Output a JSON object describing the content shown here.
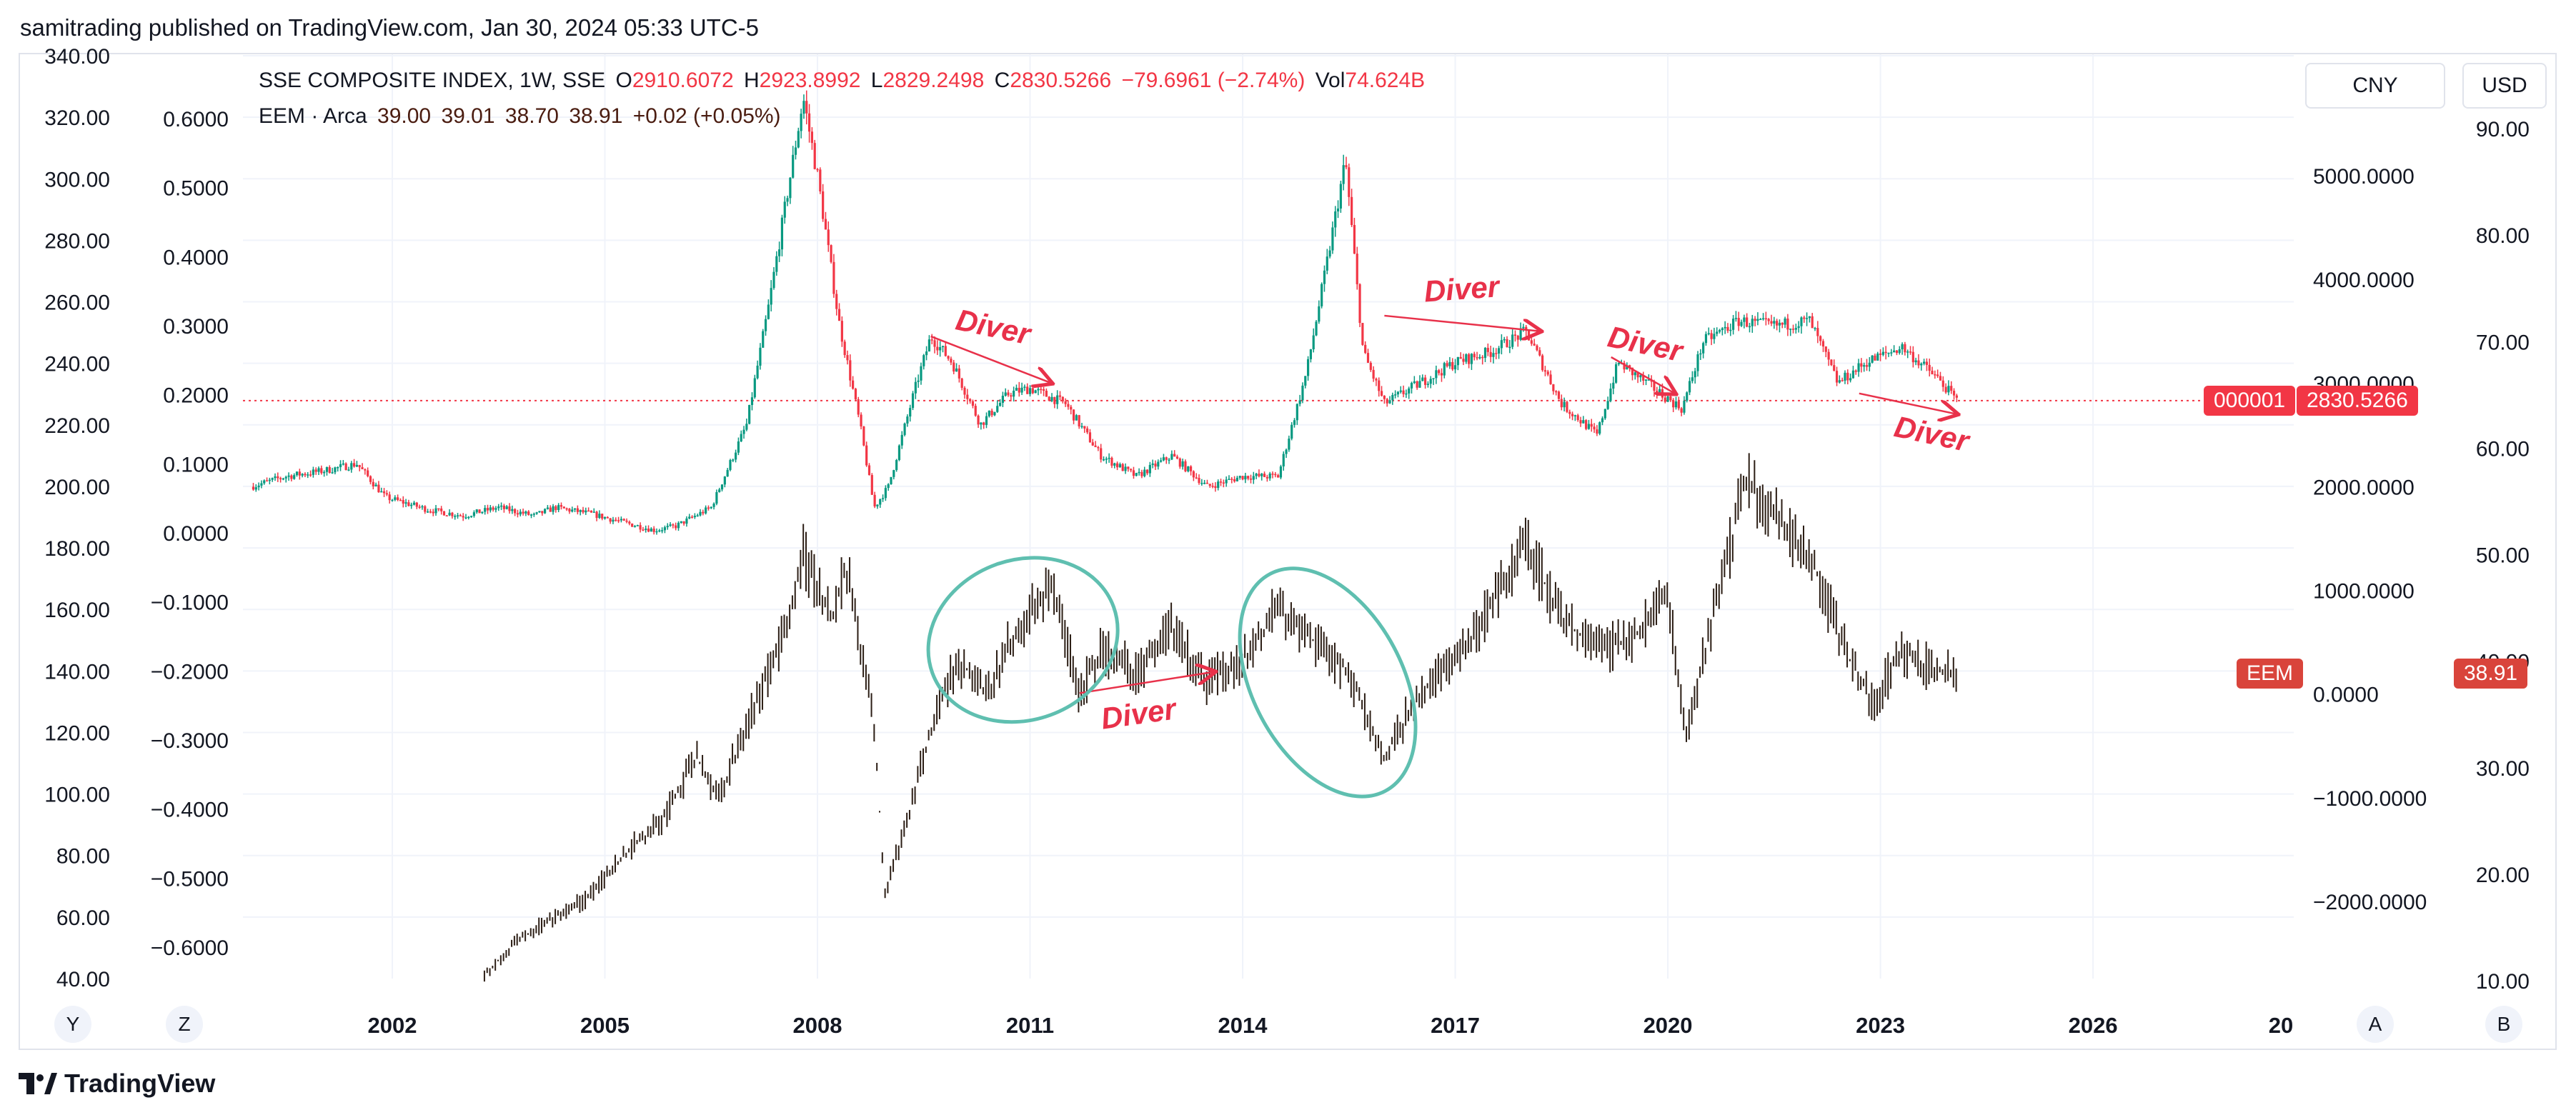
{
  "header": {
    "publisher_caption": "samitrading published on TradingView.com, Jan 30, 2024 05:33 UTC-5"
  },
  "legend": {
    "sse": {
      "label": "SSE COMPOSITE INDEX, 1W, SSE",
      "o_key": "O",
      "o_val": "2910.6072",
      "h_key": "H",
      "h_val": "2923.8992",
      "l_key": "L",
      "l_val": "2829.2498",
      "c_key": "C",
      "c_val": "2830.5266",
      "change": "−79.6961 (−2.74%)",
      "vol_key": "Vol",
      "vol_val": "74.624B"
    },
    "eem": {
      "label": "EEM · Arca",
      "o": "39.00",
      "h": "39.01",
      "l": "38.70",
      "c": "38.91",
      "change": "+0.02 (+0.05%)"
    }
  },
  "currency_buttons": {
    "cny": "CNY",
    "usd": "USD"
  },
  "badges": {
    "sse_symbol": "000001",
    "sse_price": "2830.5266",
    "eem_symbol": "EEM",
    "eem_price": "38.91"
  },
  "bottom_buttons": {
    "y": "Y",
    "z": "Z",
    "a": "A",
    "b": "B"
  },
  "brand": {
    "name": "TradingView",
    "icon": "tradingview-logo-icon"
  },
  "colors": {
    "up": "#089981",
    "down": "#f23645",
    "eem": "#2b1d14",
    "annotation_red": "#e8314a",
    "annotation_teal": "#5fbfb0",
    "sse_badge": "#f23645",
    "eem_badge": "#d9443b",
    "grid": "#f0f3fa"
  },
  "chart_data": {
    "type": "line",
    "title": "",
    "x_ticks": [
      "2002",
      "2005",
      "2008",
      "2011",
      "2014",
      "2017",
      "2020",
      "2023",
      "2026",
      "20"
    ],
    "axes": {
      "far_left": [
        "340.00",
        "320.00",
        "300.00",
        "280.00",
        "260.00",
        "240.00",
        "220.00",
        "200.00",
        "180.00",
        "160.00",
        "140.00",
        "120.00",
        "100.00",
        "80.00",
        "60.00",
        "40.00"
      ],
      "left": [
        "0.6000",
        "0.5000",
        "0.4000",
        "0.3000",
        "0.2000",
        "0.1000",
        "0.0000",
        "−0.1000",
        "−0.2000",
        "−0.3000",
        "−0.4000",
        "−0.5000",
        "−0.6000"
      ],
      "right": [
        "5000.0000",
        "4000.0000",
        "3000.0000",
        "2000.0000",
        "1000.0000",
        "0.0000",
        "−1000.0000",
        "−2000.0000"
      ],
      "far_right": [
        "90.00",
        "80.00",
        "70.00",
        "60.00",
        "50.00",
        "40.00",
        "30.00",
        "20.00",
        "10.00"
      ]
    },
    "grid": true,
    "series": [
      {
        "name": "SSE COMPOSITE INDEX, 1W, SSE",
        "axis": "right",
        "points": [
          [
            2000.0,
            2000
          ],
          [
            2000.5,
            2100
          ],
          [
            2001.0,
            2150
          ],
          [
            2001.5,
            2220
          ],
          [
            2001.9,
            1900
          ],
          [
            2002.5,
            1780
          ],
          [
            2003.0,
            1720
          ],
          [
            2003.5,
            1800
          ],
          [
            2004.0,
            1720
          ],
          [
            2004.3,
            1800
          ],
          [
            2004.8,
            1740
          ],
          [
            2005.3,
            1650
          ],
          [
            2005.7,
            1580
          ],
          [
            2006.0,
            1620
          ],
          [
            2006.5,
            1800
          ],
          [
            2007.0,
            2600
          ],
          [
            2007.3,
            3700
          ],
          [
            2007.8,
            5750
          ],
          [
            2008.0,
            5000
          ],
          [
            2008.3,
            3600
          ],
          [
            2008.6,
            2600
          ],
          [
            2008.8,
            1800
          ],
          [
            2009.0,
            2000
          ],
          [
            2009.4,
            3000
          ],
          [
            2009.6,
            3450
          ],
          [
            2009.9,
            3200
          ],
          [
            2010.3,
            2600
          ],
          [
            2010.7,
            2900
          ],
          [
            2011.0,
            2950
          ],
          [
            2011.5,
            2800
          ],
          [
            2012.0,
            2300
          ],
          [
            2012.5,
            2100
          ],
          [
            2013.0,
            2300
          ],
          [
            2013.5,
            2000
          ],
          [
            2014.0,
            2100
          ],
          [
            2014.5,
            2100
          ],
          [
            2014.9,
            3100
          ],
          [
            2015.2,
            4200
          ],
          [
            2015.45,
            5150
          ],
          [
            2015.7,
            3300
          ],
          [
            2016.0,
            2800
          ],
          [
            2016.5,
            3000
          ],
          [
            2017.0,
            3200
          ],
          [
            2017.5,
            3300
          ],
          [
            2018.0,
            3500
          ],
          [
            2018.5,
            2800
          ],
          [
            2019.0,
            2500
          ],
          [
            2019.3,
            3200
          ],
          [
            2019.8,
            2950
          ],
          [
            2020.2,
            2750
          ],
          [
            2020.5,
            3400
          ],
          [
            2021.0,
            3600
          ],
          [
            2021.5,
            3550
          ],
          [
            2022.0,
            3600
          ],
          [
            2022.4,
            3000
          ],
          [
            2022.8,
            3200
          ],
          [
            2023.3,
            3350
          ],
          [
            2023.8,
            3050
          ],
          [
            2024.08,
            2830
          ]
        ]
      },
      {
        "name": "EEM · Arca",
        "axis": "far_right",
        "points": [
          [
            2003.3,
            10.5
          ],
          [
            2003.8,
            14
          ],
          [
            2004.3,
            16
          ],
          [
            2004.8,
            18
          ],
          [
            2005.3,
            22
          ],
          [
            2005.8,
            25
          ],
          [
            2006.3,
            31
          ],
          [
            2006.6,
            27
          ],
          [
            2007.0,
            34
          ],
          [
            2007.5,
            42
          ],
          [
            2007.8,
            50
          ],
          [
            2008.2,
            44
          ],
          [
            2008.4,
            49
          ],
          [
            2008.8,
            34
          ],
          [
            2008.95,
            18
          ],
          [
            2009.3,
            26
          ],
          [
            2009.7,
            36
          ],
          [
            2010.0,
            40
          ],
          [
            2010.4,
            37
          ],
          [
            2010.8,
            43
          ],
          [
            2011.3,
            47
          ],
          [
            2011.7,
            37
          ],
          [
            2012.0,
            41
          ],
          [
            2012.5,
            39
          ],
          [
            2013.0,
            43
          ],
          [
            2013.5,
            38
          ],
          [
            2014.0,
            40
          ],
          [
            2014.5,
            45
          ],
          [
            2015.0,
            42
          ],
          [
            2015.5,
            39
          ],
          [
            2016.0,
            31
          ],
          [
            2016.5,
            37
          ],
          [
            2017.0,
            40
          ],
          [
            2017.5,
            45
          ],
          [
            2018.0,
            51
          ],
          [
            2018.5,
            44
          ],
          [
            2019.0,
            41
          ],
          [
            2019.5,
            42
          ],
          [
            2020.0,
            46
          ],
          [
            2020.25,
            33
          ],
          [
            2020.6,
            43
          ],
          [
            2021.1,
            57
          ],
          [
            2021.5,
            54
          ],
          [
            2022.0,
            50
          ],
          [
            2022.5,
            41
          ],
          [
            2022.9,
            36
          ],
          [
            2023.3,
            41
          ],
          [
            2023.8,
            39
          ],
          [
            2024.08,
            38.91
          ]
        ]
      }
    ],
    "annotations": [
      {
        "text": "Diver",
        "type": "arrow",
        "from": [
          2009.6,
          3450
        ],
        "to": [
          2011.3,
          3000
        ],
        "axis": "right"
      },
      {
        "text": "Diver",
        "type": "arrow",
        "from": [
          2011.7,
          37
        ],
        "to": [
          2013.6,
          39
        ],
        "axis": "far_right"
      },
      {
        "text": "Diver",
        "type": "arrow",
        "from": [
          2016.0,
          3650
        ],
        "to": [
          2018.2,
          3500
        ],
        "axis": "right"
      },
      {
        "text": "Diver",
        "type": "arrow",
        "from": [
          2019.2,
          3250
        ],
        "to": [
          2020.1,
          2900
        ],
        "axis": "right"
      },
      {
        "text": "Diver",
        "type": "arrow",
        "from": [
          2022.7,
          2900
        ],
        "to": [
          2024.08,
          2700
        ],
        "axis": "right"
      },
      {
        "type": "ellipse",
        "center": [
          2010.9,
          42
        ],
        "axis": "far_right"
      },
      {
        "type": "ellipse",
        "center": [
          2015.2,
          38
        ],
        "axis": "far_right"
      }
    ],
    "price_line": {
      "value": 2830.5266,
      "axis": "right"
    }
  }
}
